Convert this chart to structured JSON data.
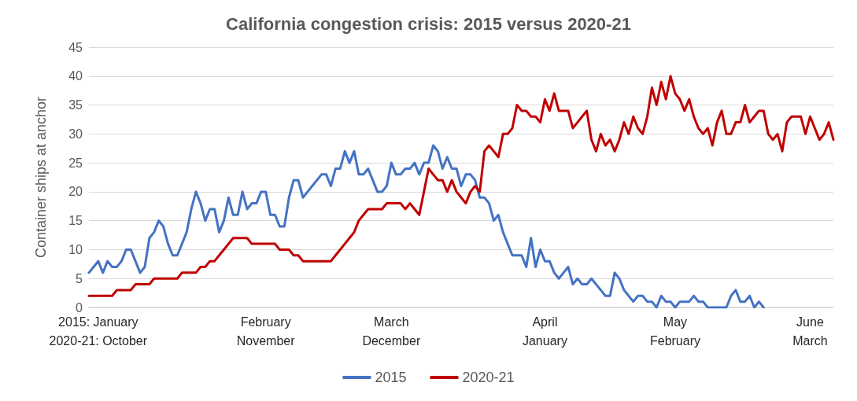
{
  "chart_data": {
    "type": "line",
    "title": "California congestion crisis: 2015 versus 2020-21",
    "ylabel": "Container ships at anchor",
    "categories": [
      null,
      null,
      "2015: January\n2020-21: October",
      null,
      null,
      null,
      null,
      null,
      null,
      null,
      null,
      null,
      null,
      null,
      null,
      null,
      null,
      null,
      null,
      null,
      null,
      null,
      null,
      null,
      null,
      null,
      null,
      null,
      null,
      null,
      null,
      null,
      null,
      null,
      null,
      null,
      null,
      null,
      "February\nNovember",
      null,
      null,
      null,
      null,
      null,
      null,
      null,
      null,
      null,
      null,
      null,
      null,
      null,
      null,
      null,
      null,
      null,
      null,
      null,
      null,
      null,
      null,
      null,
      null,
      null,
      null,
      "March\nDecember",
      null,
      null,
      null,
      null,
      null,
      null,
      null,
      null,
      null,
      null,
      null,
      null,
      null,
      null,
      null,
      null,
      null,
      null,
      null,
      null,
      null,
      null,
      null,
      null,
      null,
      null,
      null,
      null,
      null,
      null,
      null,
      null,
      "April\nJanuary",
      null,
      null,
      null,
      null,
      null,
      null,
      null,
      null,
      null,
      null,
      null,
      null,
      null,
      null,
      null,
      null,
      null,
      null,
      null,
      null,
      null,
      null,
      null,
      null,
      null,
      null,
      null,
      "May\nFebruary",
      null,
      null,
      null,
      null,
      null,
      null,
      null,
      null,
      null,
      null,
      null,
      null,
      null,
      null,
      null,
      null,
      null,
      null,
      null,
      null,
      null,
      null,
      null,
      null,
      null,
      null,
      null,
      null,
      "June\nMarch",
      null,
      null,
      null,
      null,
      null
    ],
    "series": [
      {
        "name": "2015",
        "color": "#4472c4",
        "values": [
          6,
          7,
          8,
          6,
          8,
          7,
          7,
          8,
          10,
          10,
          8,
          6,
          7,
          12,
          13,
          15,
          14,
          11,
          9,
          9,
          11,
          13,
          17,
          20,
          18,
          15,
          17,
          17,
          13,
          15,
          19,
          16,
          16,
          20,
          17,
          18,
          18,
          20,
          20,
          16,
          16,
          14,
          14,
          19,
          22,
          22,
          19,
          20,
          21,
          22,
          23,
          23,
          21,
          24,
          24,
          27,
          25,
          27,
          23,
          23,
          24,
          22,
          20,
          20,
          21,
          25,
          23,
          23,
          24,
          24,
          25,
          23,
          25,
          25,
          28,
          27,
          24,
          26,
          24,
          24,
          21,
          23,
          23,
          22,
          19,
          19,
          18,
          15,
          16,
          13,
          11,
          9,
          9,
          9,
          7,
          12,
          7,
          10,
          8,
          8,
          6,
          5,
          6,
          7,
          4,
          5,
          4,
          4,
          5,
          4,
          3,
          2,
          2,
          6,
          5,
          3,
          2,
          1,
          2,
          2,
          1,
          1,
          0,
          2,
          1,
          1,
          0,
          1,
          1,
          1,
          2,
          1,
          1,
          0,
          0,
          0,
          0,
          0,
          2,
          3,
          1,
          1,
          2,
          0,
          1,
          0,
          null,
          null,
          null,
          null,
          null,
          null,
          null,
          null,
          null,
          null,
          null,
          null,
          null,
          null,
          null
        ]
      },
      {
        "name": "2020-21",
        "color": "#c00000",
        "values": [
          2,
          2,
          2,
          2,
          2,
          2,
          3,
          3,
          3,
          3,
          4,
          4,
          4,
          4,
          5,
          5,
          5,
          5,
          5,
          5,
          6,
          6,
          6,
          6,
          7,
          7,
          8,
          8,
          9,
          10,
          11,
          12,
          12,
          12,
          12,
          11,
          11,
          11,
          11,
          11,
          11,
          10,
          10,
          10,
          9,
          9,
          8,
          8,
          8,
          8,
          8,
          8,
          8,
          9,
          10,
          11,
          12,
          13,
          15,
          16,
          17,
          17,
          17,
          17,
          18,
          18,
          18,
          18,
          17,
          18,
          17,
          16,
          20,
          24,
          23,
          22,
          22,
          20,
          22,
          20,
          19,
          18,
          20,
          21,
          20,
          27,
          28,
          27,
          26,
          30,
          30,
          31,
          35,
          34,
          34,
          33,
          33,
          32,
          36,
          34,
          37,
          34,
          34,
          34,
          31,
          32,
          33,
          34,
          29,
          27,
          30,
          28,
          29,
          27,
          29,
          32,
          30,
          33,
          31,
          30,
          33,
          38,
          35,
          39,
          36,
          40,
          37,
          36,
          34,
          36,
          33,
          31,
          30,
          31,
          28,
          32,
          34,
          30,
          30,
          32,
          32,
          35,
          32,
          33,
          34,
          34,
          30,
          29,
          30,
          27,
          32,
          33,
          33,
          33,
          30,
          33,
          31,
          29,
          30,
          32,
          29
        ]
      }
    ],
    "ylim": [
      0,
      45
    ],
    "yticks": [
      0,
      5,
      10,
      15,
      20,
      25,
      30,
      35,
      40,
      45
    ],
    "grid": "y",
    "legend": "bottom",
    "marker": "none",
    "line_style": "solid"
  }
}
